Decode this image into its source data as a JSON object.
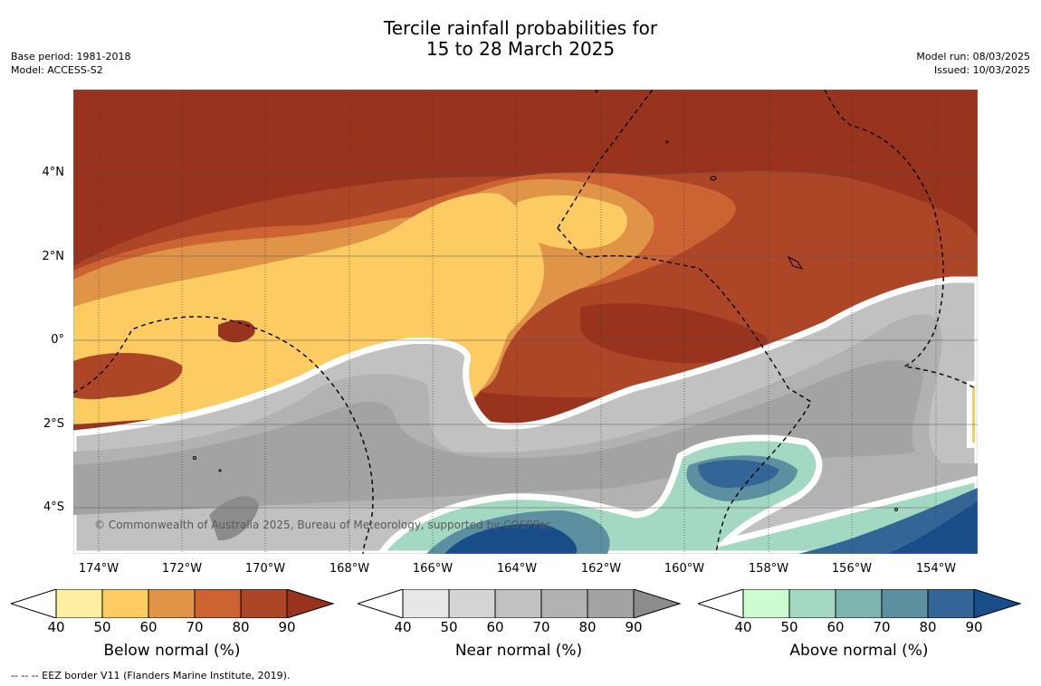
{
  "title": {
    "line1": "Tercile rainfall probabilities for",
    "line2": "15 to 28 March 2025"
  },
  "meta_left": {
    "base_period": "Base period: 1981-2018",
    "model": "Model: ACCESS-S2"
  },
  "meta_right": {
    "model_run": "Model run: 08/03/2025",
    "issued": "Issued: 10/03/2025"
  },
  "map": {
    "lat_labels": [
      "4°N",
      "2°N",
      "0°",
      "2°S",
      "4°S"
    ],
    "lon_labels": [
      "174°W",
      "172°W",
      "170°W",
      "168°W",
      "166°W",
      "164°W",
      "162°W",
      "160°W",
      "158°W",
      "156°W",
      "154°W"
    ],
    "copyright": "© Commonwealth of Australia 2025, Bureau of Meteorology, supported by COSPPac"
  },
  "colorbars": [
    {
      "title": "Below normal (%)",
      "ticks": [
        "40",
        "50",
        "60",
        "70",
        "80",
        "90"
      ],
      "colors": [
        "#ffffff",
        "#fdeea2",
        "#fccb62",
        "#e09448",
        "#cd6233",
        "#ad4527",
        "#98331e"
      ]
    },
    {
      "title": "Near normal (%)",
      "ticks": [
        "40",
        "50",
        "60",
        "70",
        "80",
        "90"
      ],
      "colors": [
        "#ffffff",
        "#e7e7e7",
        "#d4d4d4",
        "#c1c1c1",
        "#b2b2b2",
        "#a3a3a3",
        "#8c8c8c"
      ]
    },
    {
      "title": "Above normal (%)",
      "ticks": [
        "40",
        "50",
        "60",
        "70",
        "80",
        "90"
      ],
      "colors": [
        "#ffffff",
        "#ccfcd0",
        "#a3d9c2",
        "#7fb5af",
        "#5c8fa0",
        "#336596",
        "#174e8a"
      ]
    }
  ],
  "footer": "--  --  -- EEZ border V11 (Flanders Marine Institute, 2019)."
}
